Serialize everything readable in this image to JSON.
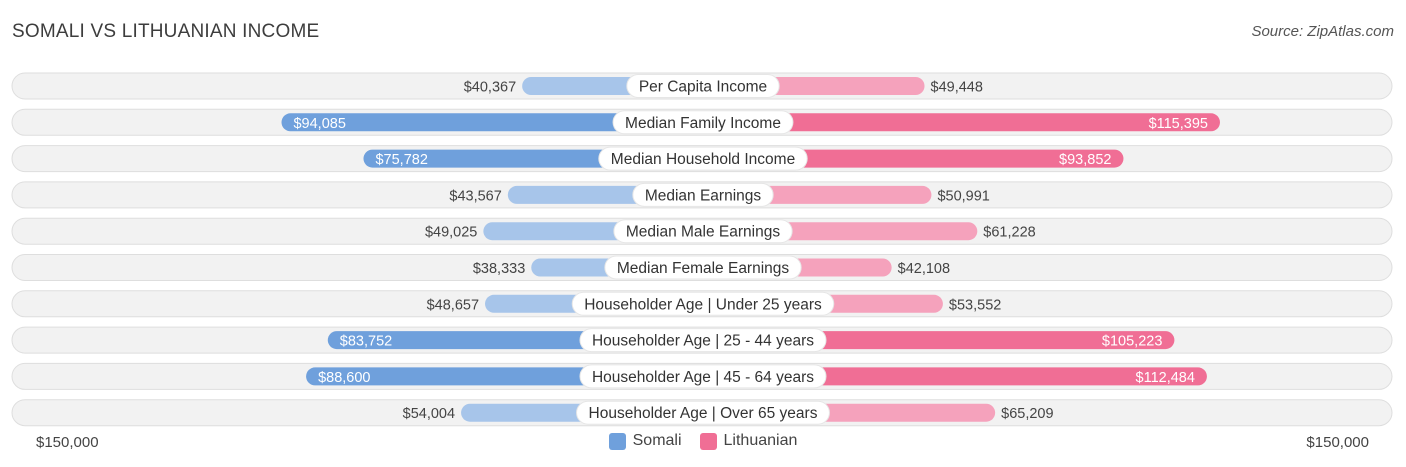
{
  "title": "SOMALI VS LITHUANIAN INCOME",
  "source": "Source: ZipAtlas.com",
  "colors": {
    "somali": "#6fa0dc",
    "somali_light": "#a7c5ea",
    "lithuanian": "#f06e95",
    "lithuanian_light": "#f5a2bc"
  },
  "axis": {
    "left_label": "$150,000",
    "right_label": "$150,000"
  },
  "legend": {
    "somali": "Somali",
    "lithuanian": "Lithuanian"
  },
  "chart_data": {
    "type": "bar",
    "title": "SOMALI VS LITHUANIAN INCOME",
    "orientation": "diverging-horizontal",
    "max": 150000,
    "categories": [
      "Per Capita Income",
      "Median Family Income",
      "Median Household Income",
      "Median Earnings",
      "Median Male Earnings",
      "Median Female Earnings",
      "Householder Age | Under 25 years",
      "Householder Age | 25 - 44 years",
      "Householder Age | 45 - 64 years",
      "Householder Age | Over 65 years"
    ],
    "series": [
      {
        "name": "Somali",
        "side": "left",
        "values": [
          40367,
          94085,
          75782,
          43567,
          49025,
          38333,
          48657,
          83752,
          88600,
          54004
        ],
        "labels": [
          "$40,367",
          "$94,085",
          "$75,782",
          "$43,567",
          "$49,025",
          "$38,333",
          "$48,657",
          "$83,752",
          "$88,600",
          "$54,004"
        ]
      },
      {
        "name": "Lithuanian",
        "side": "right",
        "values": [
          49448,
          115395,
          93852,
          50991,
          61228,
          42108,
          53552,
          105223,
          112484,
          65209
        ],
        "labels": [
          "$49,448",
          "$115,395",
          "$93,852",
          "$50,991",
          "$61,228",
          "$42,108",
          "$53,552",
          "$105,223",
          "$112,484",
          "$65,209"
        ]
      }
    ]
  }
}
